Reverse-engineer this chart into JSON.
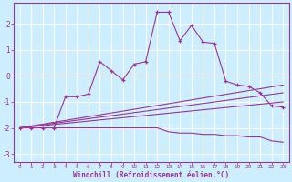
{
  "background_color": "#cceeff",
  "grid_color": "#ffffff",
  "line_color": "#993399",
  "xlabel": "Windchill (Refroidissement éolien,°C)",
  "xlim": [
    -0.5,
    23.5
  ],
  "ylim": [
    -3.3,
    2.8
  ],
  "yticks": [
    -3,
    -2,
    -1,
    0,
    1,
    2
  ],
  "xtick_labels": [
    "0",
    "1",
    "2",
    "3",
    "4",
    "5",
    "6",
    "7",
    "8",
    "9",
    "10",
    "11",
    "12",
    "13",
    "14",
    "15",
    "16",
    "17",
    "18",
    "19",
    "20",
    "21",
    "22",
    "23"
  ],
  "series": [
    {
      "x": [
        0,
        1,
        2,
        3,
        4,
        5,
        6,
        7,
        8,
        9,
        10,
        11,
        12,
        13,
        14,
        15,
        16,
        17,
        18,
        19,
        20,
        21,
        22,
        23
      ],
      "y": [
        -2.0,
        -2.0,
        -2.0,
        -2.0,
        -0.8,
        -0.8,
        -0.7,
        0.55,
        0.2,
        -0.15,
        0.45,
        0.55,
        2.45,
        2.45,
        1.35,
        1.95,
        1.3,
        1.25,
        -0.2,
        -0.35,
        -0.4,
        -0.65,
        -1.15,
        -1.2
      ],
      "marker": true
    },
    {
      "x": [
        0,
        1,
        2,
        3,
        4,
        5,
        6,
        7,
        8,
        9,
        10,
        11,
        12,
        13,
        14,
        15,
        16,
        17,
        18,
        19,
        20,
        21,
        22,
        23
      ],
      "y": [
        -2.0,
        -2.0,
        -2.0,
        -2.0,
        -2.0,
        -2.0,
        -2.0,
        -2.0,
        -2.0,
        -2.0,
        -2.0,
        -2.0,
        -2.0,
        -2.15,
        -2.2,
        -2.2,
        -2.25,
        -2.25,
        -2.3,
        -2.3,
        -2.35,
        -2.35,
        -2.5,
        -2.55
      ],
      "marker": false
    },
    {
      "x": [
        0,
        23
      ],
      "y": [
        -2.0,
        -0.35
      ],
      "marker": false
    },
    {
      "x": [
        0,
        23
      ],
      "y": [
        -2.0,
        -0.65
      ],
      "marker": false
    },
    {
      "x": [
        0,
        23
      ],
      "y": [
        -2.0,
        -1.0
      ],
      "marker": false
    }
  ]
}
